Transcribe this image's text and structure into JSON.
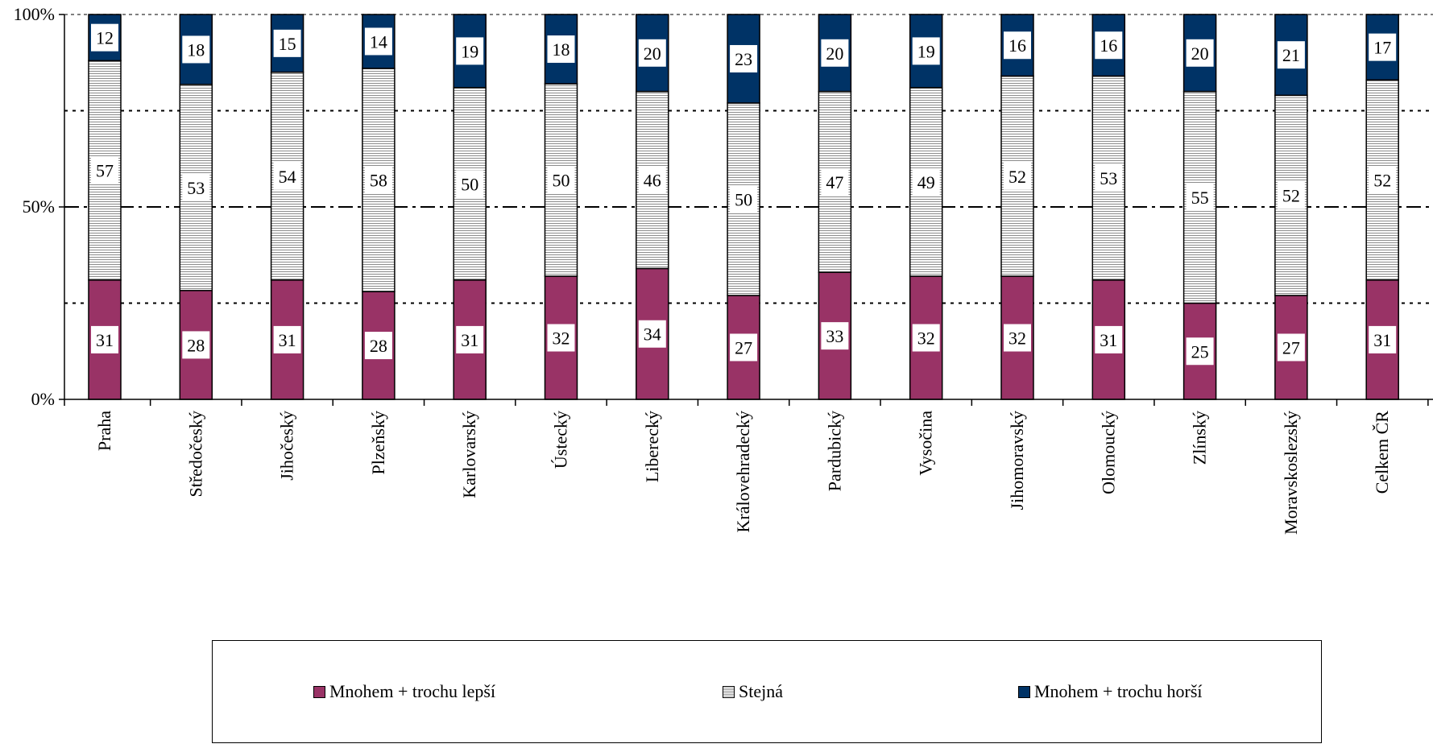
{
  "chart_data": {
    "type": "bar",
    "stacked": true,
    "percent": true,
    "categories": [
      "Praha",
      "Středočeský",
      "Jihočeský",
      "Plzeňský",
      "Karlovarský",
      "Ústecký",
      "Liberecký",
      "Královehradecký",
      "Pardubický",
      "Vysočina",
      "Jihomoravský",
      "Olomoucký",
      "Zlínský",
      "Moravskoslezský",
      "Celkem ČR"
    ],
    "series": [
      {
        "name": "Mnohem + trochu lepší",
        "color": "#993366",
        "pattern": "solid",
        "values": [
          31,
          28,
          31,
          28,
          31,
          32,
          34,
          27,
          33,
          32,
          32,
          31,
          25,
          27,
          31
        ]
      },
      {
        "name": "Stejná",
        "color": "#ffffff",
        "pattern": "horizontal-stripes",
        "values": [
          57,
          53,
          54,
          58,
          50,
          50,
          46,
          50,
          47,
          49,
          52,
          53,
          55,
          52,
          52
        ]
      },
      {
        "name": "Mnohem + trochu horší",
        "color": "#003366",
        "pattern": "solid",
        "values": [
          12,
          18,
          15,
          14,
          19,
          18,
          20,
          23,
          20,
          19,
          16,
          16,
          20,
          21,
          17
        ]
      }
    ],
    "yticks": [
      "0%",
      "50%",
      "100%"
    ],
    "ylim": [
      0,
      100
    ],
    "gridlines": [
      25,
      50,
      75,
      100
    ],
    "legend": "bottom"
  }
}
